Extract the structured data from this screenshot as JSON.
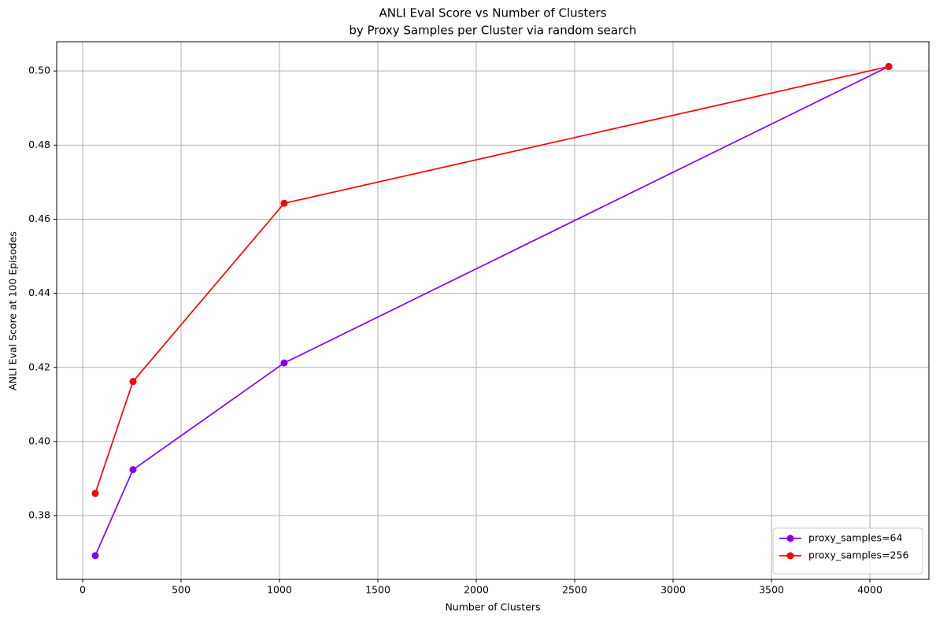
{
  "chart_data": {
    "type": "line",
    "title": "ANLI Eval Score vs Number of Clusters",
    "subtitle": "by Proxy Samples per Cluster via random search",
    "x_label": "Number of Clusters",
    "y_label": "ANLI Eval Score at 100 Episodes",
    "x": [
      64,
      256,
      1024,
      4096
    ],
    "series": [
      {
        "name": "proxy_samples=64",
        "color": "#8000ff",
        "values": [
          0.3692,
          0.3924,
          0.4212,
          0.5012
        ]
      },
      {
        "name": "proxy_samples=256",
        "color": "#ff0000",
        "values": [
          0.386,
          0.4162,
          0.4643,
          0.5012
        ]
      }
    ],
    "xlim": [
      -132,
      4300
    ],
    "ylim": [
      0.3628,
      0.5079
    ],
    "xticks": [
      0,
      500,
      1000,
      1500,
      2000,
      2500,
      3000,
      3500,
      4000
    ],
    "yticks": [
      0.38,
      {
        "value": 0.4,
        "label": "0.40"
      },
      0.42,
      0.44,
      0.46,
      0.48,
      {
        "value": 0.5,
        "label": "0.50"
      }
    ],
    "grid": true,
    "legend": "lower right"
  }
}
